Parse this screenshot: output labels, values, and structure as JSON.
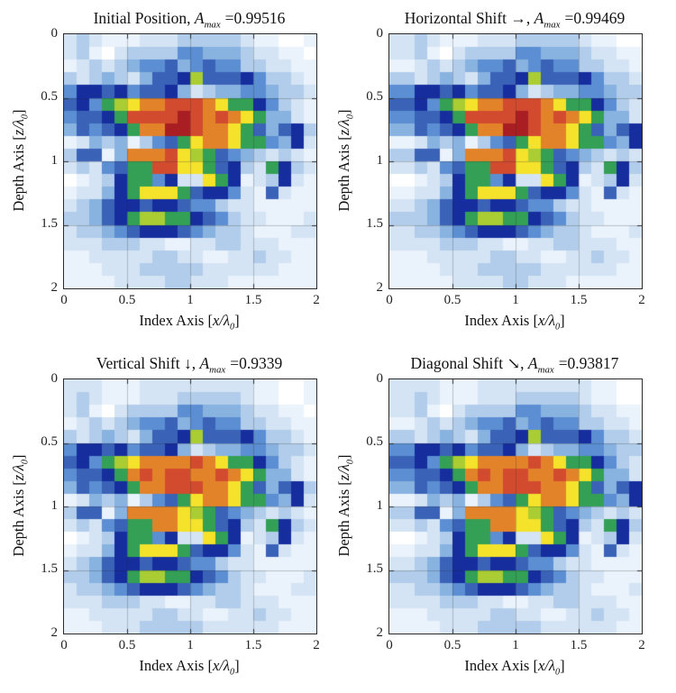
{
  "figure_background": "#ffffff",
  "axis_color": "#2b2b2b",
  "axes": {
    "xlabel": {
      "pre": "Index Axis [",
      "var": "x/λ",
      "sub": "0",
      "post": "]"
    },
    "ylabel": {
      "pre": "Depth Axis [",
      "var": "z/λ",
      "sub": "0",
      "post": "]"
    },
    "xticks": [
      "0",
      "0.5",
      "1",
      "1.5",
      "2"
    ],
    "yticks": [
      "0",
      "0.5",
      "1",
      "1.5",
      "2"
    ]
  },
  "chart_data": {
    "type": "heatmap",
    "layout": "2x2 panel grid",
    "x_range": [
      0,
      2
    ],
    "y_range": [
      0,
      2
    ],
    "y_axis_reversed": true,
    "xticks": [
      0,
      0.5,
      1,
      1.5,
      2
    ],
    "yticks": [
      0,
      0.5,
      1,
      1.5,
      2
    ],
    "grid_lines": [
      0.5,
      1.0,
      1.5
    ],
    "cell_count": [
      20,
      20
    ],
    "xlabel": "Index Axis [x/λ0]",
    "ylabel": "Depth Axis [z/λ0]",
    "value_encoding": "each character is a hex level 0-13 (0=white low amplitude, d=dark red max); level/13 ≈ normalized amplitude",
    "palette": [
      "#ffffff",
      "#eaf2fb",
      "#d4e4f4",
      "#b2cdeb",
      "#88b2e0",
      "#5b8ed2",
      "#3a63b8",
      "#162d9e",
      "#33a055",
      "#a9cd33",
      "#f5e22a",
      "#e2832a",
      "#d24b2e",
      "#a81e22"
    ],
    "panels": [
      {
        "title_prefix": "Initial Position, ",
        "amax_symbol": "A",
        "amax_sub": "max",
        "amax_eq": "=0.99516",
        "amax": 0.99516,
        "values": [
          "23211122233333211001",
          "23102333355444322110",
          "12323455645655332211",
          "32343246679666753321",
          "57767566742344554332",
          "67589abbcccba8875321",
          "56678ccccdcbcba84421",
          "465678bbddcbba864673",
          "1243413568abba885472",
          "36614bbbca9865432321",
          "2325688ccaa867328732",
          "01237885722a87123721",
          "122478aaa86775216211",
          "23467767765532211111",
          "33467899887653221112",
          "23345677765433211122",
          "22233322112233222111",
          "11222223322112232211",
          "11122233333222222111",
          "11112222332221111111"
        ]
      },
      {
        "title_prefix": "Horizontal Shift →, ",
        "amax_symbol": "A",
        "amax_sub": "max",
        "amax_eq": "=0.99469",
        "amax": 0.99469,
        "values": [
          "22321112223333321100",
          "22310233335544432211",
          "11232345564565533221",
          "33234324667966675332",
          "55776756674234455433",
          "667589abbcccba887532",
          "556678ccccdcbcba8442",
          "4465678bbddcbba86467",
          "11243413568abba88547",
          "336614bbbca986543232",
          "22325688ccaa86732873",
          "001237885722a8712372",
          "1122478aaa8677521621",
          "22346776776553221111",
          "33346789988765322111",
          "22334567776543321112",
          "22223332211223322211",
          "11122222332211223221",
          "11112223333322222211",
          "11111222233222111111"
        ]
      },
      {
        "title_prefix": "Vertical Shift ↓, ",
        "amax_symbol": "A",
        "amax_sub": "max",
        "amax_eq": "=0.9339",
        "amax": 0.9339,
        "values": [
          "22211122222222211001",
          "23211122233333211001",
          "23102333355444322110",
          "12323455645655332211",
          "32343246679666753321",
          "57767566742344554332",
          "67589abbbbcba8875321",
          "56678bcbccbbcba84421",
          "465678bbcccbba864673",
          "1243413568abba885472",
          "36614bbbba9865432321",
          "2325688bbaa867328732",
          "01237885722a87123721",
          "122478aaa86775216211",
          "23467767765532211111",
          "33467899887653221112",
          "23345677765433211122",
          "22233322112233222111",
          "11222223322112232211",
          "11122233333222222111"
        ]
      },
      {
        "title_prefix": "Diagonal Shift ↘, ",
        "amax_symbol": "A",
        "amax_sub": "max",
        "amax_eq": "=0.93817",
        "amax": 0.93817,
        "values": [
          "22221112222222221100",
          "22321112223333321100",
          "22310233335544432211",
          "11232345564565533221",
          "33234324667966675332",
          "55776756674234455433",
          "667589abbbbcba887532",
          "556678bcbccbbcba8442",
          "4465678bbcccbba86467",
          "11243413568abba88547",
          "336614bbbba986543232",
          "22325688bbaa86732873",
          "001237885722a8712372",
          "1122478aaa8677521621",
          "22346776776553221111",
          "33346789988765322111",
          "22334567776543321112",
          "22223332211223322211",
          "11122222332211223221",
          "11112223333322222211"
        ]
      }
    ]
  }
}
